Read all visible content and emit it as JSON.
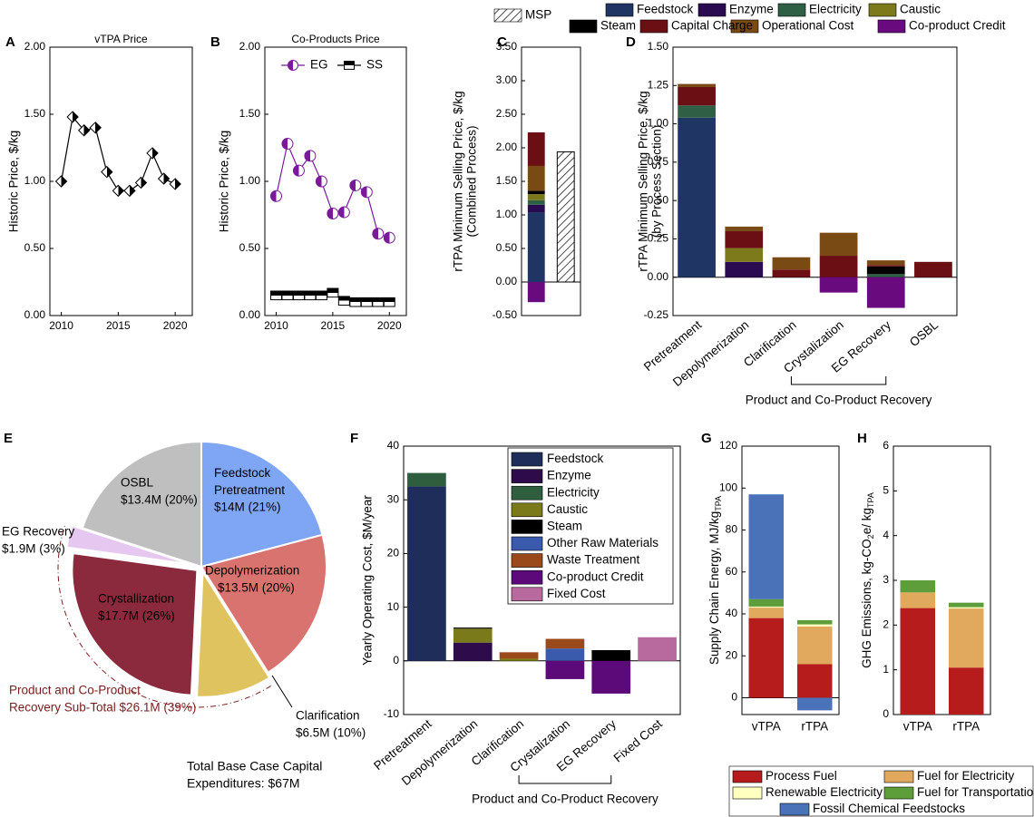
{
  "chart_data": [
    {
      "type": "line",
      "panel": "A",
      "title": "vTPA Price",
      "ylabel": [
        "Historic Price, $/kg"
      ],
      "x": [
        2010,
        2011,
        2012,
        2013,
        2014,
        2015,
        2016,
        2017,
        2018,
        2019,
        2020
      ],
      "xlim": [
        2009,
        2021.5
      ],
      "xticks": [
        2010,
        2015,
        2020
      ],
      "ylim": [
        0,
        2
      ],
      "yticks": [
        {
          "value": 0,
          "label": "0.00"
        },
        {
          "value": 0.5,
          "label": "0.50"
        },
        {
          "value": 1,
          "label": "1.00"
        },
        {
          "value": 1.5,
          "label": "1.50"
        },
        {
          "value": 2,
          "label": "2.00"
        }
      ],
      "series": [
        {
          "color": "#000000",
          "marker": "diamond",
          "values": [
            1.0,
            1.48,
            1.38,
            1.4,
            1.07,
            0.93,
            0.93,
            0.99,
            1.21,
            1.02,
            0.98
          ]
        }
      ]
    },
    {
      "type": "line",
      "panel": "B",
      "title": "Co-Products Price",
      "ylabel": [
        "Historic Price, $/kg"
      ],
      "x": [
        2010,
        2011,
        2012,
        2013,
        2014,
        2015,
        2016,
        2017,
        2018,
        2019,
        2020
      ],
      "xlim": [
        2009,
        2021.5
      ],
      "xticks": [
        2010,
        2015,
        2020
      ],
      "ylim": [
        0,
        2
      ],
      "yticks": [
        {
          "value": 0,
          "label": "0.00"
        },
        {
          "value": 0.5,
          "label": "0.50"
        },
        {
          "value": 1,
          "label": "1.00"
        },
        {
          "value": 1.5,
          "label": "1.50"
        },
        {
          "value": 2,
          "label": "2.00"
        }
      ],
      "legend": "top",
      "series": [
        {
          "name": "EG",
          "color": "#7a1a9a",
          "marker": "circle",
          "values": [
            0.89,
            1.28,
            1.08,
            1.19,
            1.0,
            0.76,
            0.77,
            0.97,
            0.92,
            0.61,
            0.58
          ]
        },
        {
          "name": "SS",
          "color": "#000000",
          "marker": "square",
          "values": [
            0.15,
            0.15,
            0.15,
            0.15,
            0.15,
            0.17,
            0.11,
            0.1,
            0.1,
            0.1,
            0.1
          ]
        }
      ]
    },
    {
      "type": "stacked_bar",
      "panel": "C",
      "ylabel": [
        "rTPA Minimum Selling Price, $/kg",
        "(Combined Process)"
      ],
      "categories": [
        null,
        null
      ],
      "ylim": [
        -0.5,
        3.5
      ],
      "yticks": [
        {
          "value": -0.5,
          "label": "-0.50"
        },
        {
          "value": 0,
          "label": "0.00"
        },
        {
          "value": 0.5,
          "label": "0.50"
        },
        {
          "value": 1,
          "label": "1.00"
        },
        {
          "value": 1.5,
          "label": "1.50"
        },
        {
          "value": 2,
          "label": "2.00"
        },
        {
          "value": 2.5,
          "label": "2.50"
        },
        {
          "value": 3,
          "label": "3.00"
        },
        {
          "value": 3.5,
          "label": "3.50"
        }
      ],
      "series": [
        {
          "name": "Feedstock",
          "color": "#1f3563",
          "values": [
            1.04,
            null
          ]
        },
        {
          "name": "Enzyme",
          "color": "#2a0a50",
          "values": [
            0.11,
            null
          ]
        },
        {
          "name": "Electricity",
          "color": "#2f5f45",
          "values": [
            0.07,
            null
          ]
        },
        {
          "name": "Caustic",
          "color": "#7d7a1c",
          "values": [
            0.09,
            null
          ]
        },
        {
          "name": "Steam",
          "color": "#000000",
          "values": [
            0.05,
            null
          ]
        },
        {
          "name": "Operational Cost",
          "color": "#7a4a14",
          "values": [
            0.37,
            null
          ]
        },
        {
          "name": "Capital Charge",
          "color": "#6b0f14",
          "values": [
            0.5,
            null
          ]
        },
        {
          "name": "Co-product Credit",
          "color": "#6a0a7f",
          "values": [
            -0.3,
            null
          ]
        },
        {
          "name": "MSP",
          "color": "#ffffff",
          "hatch": true,
          "values": [
            null,
            1.94
          ]
        }
      ]
    },
    {
      "type": "stacked_bar",
      "panel": "D",
      "ylabel": [
        "rTPA Minimum Selling Price, $/kg",
        "(by Process Section)"
      ],
      "categories": [
        "Pretreatment",
        "Depolymerization",
        "Clarification",
        "Crystalization",
        "EG Recovery",
        "OSBL"
      ],
      "bracket_label": "Product and Co-Product Recovery",
      "ylim": [
        -0.25,
        1.5
      ],
      "yticks": [
        {
          "value": -0.25,
          "label": "-0.25"
        },
        {
          "value": 0,
          "label": "0.00"
        },
        {
          "value": 0.25,
          "label": "0.25"
        },
        {
          "value": 0.5,
          "label": "0.50"
        },
        {
          "value": 0.75,
          "label": "0.75"
        },
        {
          "value": 1,
          "label": "1.00"
        },
        {
          "value": 1.25,
          "label": "1.25"
        },
        {
          "value": 1.5,
          "label": "1.50"
        }
      ],
      "series": [
        {
          "color": "#1f3563",
          "values": [
            1.04,
            null,
            null,
            null,
            null,
            null
          ]
        },
        {
          "color": "#2a0a50",
          "values": [
            null,
            0.1,
            null,
            null,
            null,
            null
          ]
        },
        {
          "color": "#2f5f45",
          "values": [
            0.08,
            null,
            null,
            null,
            0.02,
            null
          ]
        },
        {
          "color": "#7d7a1c",
          "values": [
            null,
            0.09,
            null,
            null,
            null,
            null
          ]
        },
        {
          "color": "#000000",
          "values": [
            null,
            null,
            null,
            null,
            0.05,
            null
          ]
        },
        {
          "color": "#6b0f14",
          "values": [
            0.12,
            0.11,
            0.05,
            0.14,
            0.01,
            0.1
          ]
        },
        {
          "color": "#7a4a14",
          "values": [
            0.02,
            0.03,
            0.08,
            0.15,
            0.03,
            null
          ]
        },
        {
          "color": "#6a0a7f",
          "values": [
            null,
            null,
            null,
            -0.1,
            -0.2,
            null
          ]
        }
      ]
    },
    {
      "type": "pie",
      "panel": "E",
      "categories": [
        "Feedstock Pretreatment",
        "Depolymerization",
        "Clarification",
        "Crystallization",
        "EG Recovery",
        "OSBL"
      ],
      "values": [
        14,
        13.5,
        6.5,
        17.7,
        1.9,
        13.4
      ],
      "value_labels": [
        "$14M (21%)",
        "$13.5M (20%)",
        "$6.5M (10%)",
        "$17.7M (26%)",
        "$1.9M (3%)",
        "$13.4M (20%)"
      ],
      "colors": [
        "#7fa6f5",
        "#d9736f",
        "#dfc35e",
        "#8b2a3c",
        "#e5c7ef",
        "#bfbfbf"
      ],
      "subtotal": [
        "Product and Co-Product",
        "Recovery Sub-Total $26.1M (39%)"
      ],
      "total": [
        "Total Base Case Capital",
        "Expenditures: $67M"
      ]
    },
    {
      "type": "stacked_bar",
      "panel": "F",
      "ylabel": [
        "Yearly Operating Cost, $M/year"
      ],
      "categories": [
        "Pretreatment",
        "Depolymerization",
        "Clarification",
        "Crystalization",
        "EG Recovery",
        "Fixed Cost"
      ],
      "bracket_label": "Product and Co-Product Recovery",
      "ylim": [
        -10,
        40
      ],
      "yticks": [
        -10,
        0,
        10,
        20,
        30,
        40
      ],
      "series": [
        {
          "name": "Feedstock",
          "color": "#1f2d5a",
          "values": [
            32.5,
            null,
            null,
            null,
            null,
            null
          ]
        },
        {
          "name": "Enzyme",
          "color": "#2e0b4a",
          "values": [
            null,
            3.4,
            null,
            null,
            null,
            null
          ]
        },
        {
          "name": "Electricity",
          "color": "#2e5e3e",
          "values": [
            2.5,
            null,
            null,
            null,
            null,
            null
          ]
        },
        {
          "name": "Caustic",
          "color": "#7b7a1a",
          "values": [
            null,
            2.6,
            0.4,
            null,
            null,
            null
          ]
        },
        {
          "name": "Steam",
          "color": "#000000",
          "values": [
            null,
            0.2,
            null,
            null,
            2.0,
            null
          ]
        },
        {
          "name": "Other Raw Materials",
          "color": "#3a5bab",
          "values": [
            null,
            null,
            null,
            2.3,
            null,
            null
          ]
        },
        {
          "name": "Waste Treatment",
          "color": "#9a4a1a",
          "values": [
            null,
            null,
            1.2,
            1.8,
            null,
            null
          ]
        },
        {
          "name": "Co-product Credit",
          "color": "#5c0a7a",
          "values": [
            null,
            null,
            null,
            -3.4,
            -6.1,
            null
          ]
        },
        {
          "name": "Fixed Cost",
          "color": "#b86a9e",
          "values": [
            null,
            null,
            null,
            null,
            null,
            4.4
          ]
        }
      ]
    },
    {
      "type": "stacked_bar",
      "panel": "G",
      "ylabel_runs": [
        {
          "text": "Supply Chain Energy, MJ/kg"
        },
        {
          "text": "TPA",
          "sub": true
        }
      ],
      "categories": [
        "vTPA",
        "rTPA"
      ],
      "ylim": [
        -8,
        120
      ],
      "yticks": [
        0,
        20,
        40,
        60,
        80,
        100,
        120
      ],
      "series": [
        {
          "name": "Process Fuel",
          "color": "#b71c1c",
          "values": [
            38,
            16
          ]
        },
        {
          "name": "Fuel for Electricity",
          "color": "#e0a95e",
          "values": [
            5,
            18
          ]
        },
        {
          "name": "Renewable Electricity",
          "color": "#ffffc0",
          "values": [
            0.5,
            1
          ]
        },
        {
          "name": "Fuel for Transportation",
          "color": "#5e9e3a",
          "values": [
            3.5,
            2
          ]
        },
        {
          "name": "Fossil Chemical Feedstocks",
          "color": "#4a72b8",
          "values": [
            50,
            -6
          ]
        }
      ]
    },
    {
      "type": "stacked_bar",
      "panel": "H",
      "ylabel_runs": [
        {
          "text": "GHG Emissions, kg-CO"
        },
        {
          "text": "2",
          "sub": true
        },
        {
          "text": "e/ kg"
        },
        {
          "text": "TPA",
          "sub": true
        }
      ],
      "categories": [
        "vTPA",
        "rTPA"
      ],
      "ylim": [
        0,
        6
      ],
      "yticks": [
        0,
        1,
        2,
        3,
        4,
        5,
        6
      ],
      "series": [
        {
          "color": "#b71c1c",
          "values": [
            2.38,
            1.05
          ]
        },
        {
          "color": "#e0a95e",
          "values": [
            0.35,
            1.32
          ]
        },
        {
          "color": "#ffffc0",
          "values": [
            0,
            0.03
          ]
        },
        {
          "color": "#5e9e3a",
          "values": [
            0.27,
            0.1
          ]
        }
      ]
    }
  ]
}
